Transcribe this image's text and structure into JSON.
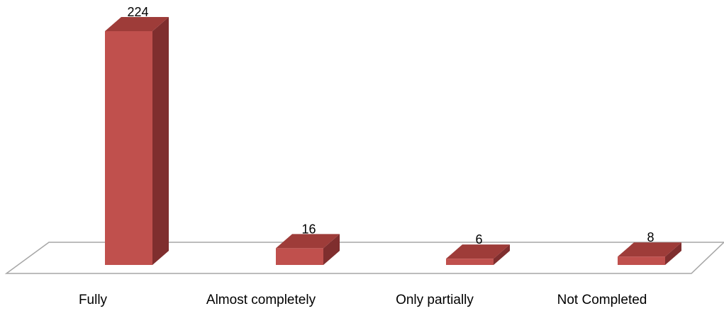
{
  "chart_data": {
    "type": "bar",
    "style": "3d-column",
    "categories": [
      "Fully",
      "Almost completely",
      "Only partially",
      "Not Completed"
    ],
    "values": [
      224,
      16,
      6,
      8
    ],
    "data_labels": [
      "224",
      "16",
      "6",
      "8"
    ],
    "ylim": [
      0,
      224
    ],
    "grid": false,
    "legend": "none"
  },
  "colors": {
    "bar_front": "#c0504d",
    "bar_side": "#7f2e2e",
    "bar_top": "#9e3c39",
    "floor_stroke": "#a6a6a6"
  }
}
